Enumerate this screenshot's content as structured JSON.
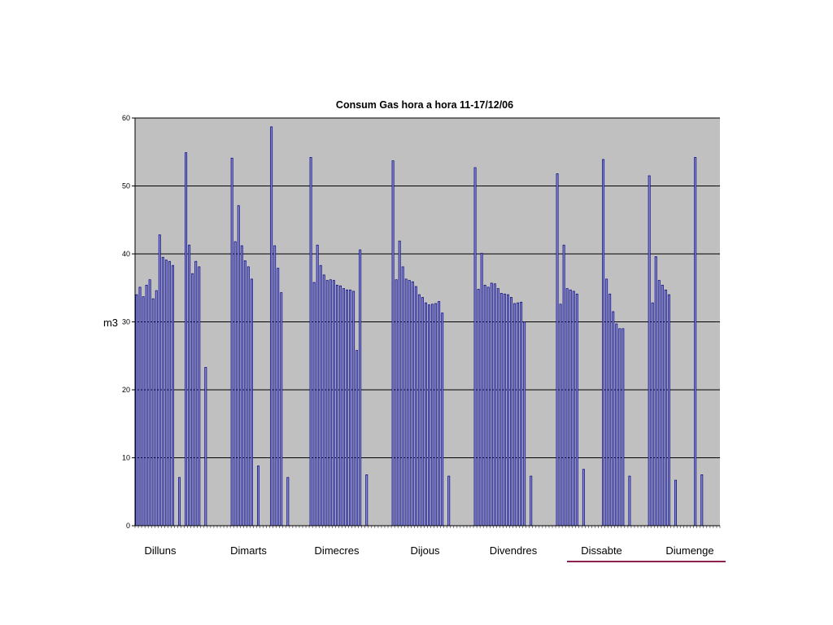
{
  "chart_data": {
    "type": "bar",
    "title": "Consum Gas hora a hora 11-17/12/06",
    "xlabel": "",
    "ylabel": "m3",
    "ylim": [
      0,
      60
    ],
    "yticks": [
      "0",
      "10",
      "20",
      "30",
      "40",
      "50",
      "60"
    ],
    "grid": true,
    "day_labels": [
      "Dilluns",
      "Dimarts",
      "Dimecres",
      "Dijous",
      "Divendres",
      "Dissabte",
      "Diumenge"
    ],
    "highlighted_days": [
      "Dissabte",
      "Diumenge"
    ],
    "values": [
      34.0,
      35.1,
      33.7,
      35.4,
      36.2,
      33.4,
      34.6,
      42.8,
      39.5,
      39.1,
      38.9,
      38.3,
      0,
      7.1,
      0,
      54.9,
      41.3,
      37.1,
      38.9,
      38.1,
      0,
      23.3,
      0,
      0,
      0,
      0,
      0,
      0,
      0,
      54.1,
      41.8,
      47.1,
      41.2,
      39.0,
      38.1,
      36.3,
      0,
      8.8,
      0,
      0,
      0,
      58.7,
      41.2,
      37.9,
      34.3,
      0,
      7.1,
      0,
      0,
      0,
      0,
      0,
      0,
      54.2,
      35.8,
      41.3,
      38.3,
      36.9,
      36.1,
      36.2,
      36.1,
      35.4,
      35.3,
      34.9,
      34.7,
      34.7,
      34.5,
      25.8,
      40.6,
      0,
      7.5,
      0,
      0,
      0,
      0,
      0,
      0,
      0,
      53.7,
      36.2,
      41.9,
      38.1,
      36.3,
      36.1,
      35.9,
      35.2,
      34.0,
      33.6,
      32.8,
      32.5,
      32.6,
      32.7,
      33.0,
      31.3,
      0,
      7.3,
      0,
      0,
      0,
      0,
      0,
      0,
      0,
      52.7,
      34.8,
      40.1,
      35.4,
      35.1,
      35.7,
      35.6,
      34.9,
      34.2,
      34.1,
      34.0,
      33.6,
      32.7,
      32.8,
      32.9,
      30.0,
      0,
      7.3,
      0,
      0,
      0,
      0,
      0,
      0,
      0,
      51.8,
      32.6,
      41.3,
      34.9,
      34.7,
      34.5,
      34.1,
      0,
      8.3,
      0,
      0,
      0,
      0,
      0,
      53.9,
      36.3,
      34.1,
      31.5,
      29.7,
      29.0,
      29.0,
      0,
      7.3,
      0,
      0,
      0,
      0,
      0,
      51.5,
      32.8,
      39.6,
      36.1,
      35.4,
      34.7,
      34.0,
      0,
      6.7,
      0,
      0,
      0,
      0,
      0,
      54.2,
      0,
      7.5,
      0,
      0,
      0,
      0,
      0
    ],
    "colors": {
      "bar_fill": "#8a8acf",
      "bar_stroke": "#000080",
      "plot_background": "#c0c0c0",
      "gridline": "#000000",
      "highlight_line": "#8b2252"
    }
  }
}
